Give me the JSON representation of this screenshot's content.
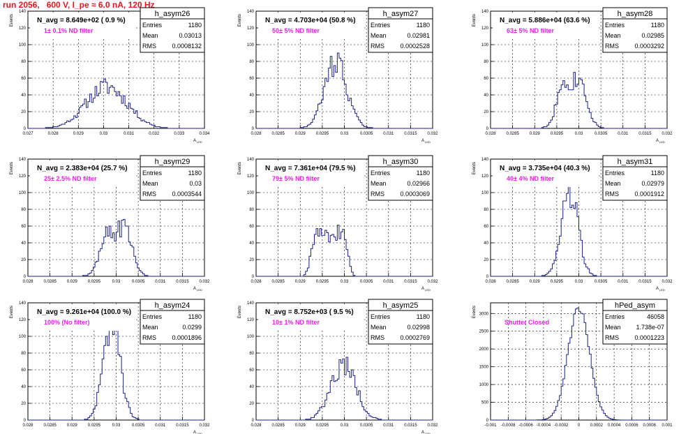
{
  "header": {
    "title": "run 2056,   600 V, I_pe ≈ 6.0 nA, 120 Hz"
  },
  "colors": {
    "line": "#1b1f8a",
    "header": "#e8141c",
    "filter_label": "#e81ee8",
    "grid": "#000000"
  },
  "chart_data": [
    {
      "type": "bar",
      "name": "h_asym26",
      "nbar": "N_avg = 8.649e+02 ( 0.9 %)",
      "label": "1± 0.1% ND filter",
      "stats": {
        "Entries": "1180",
        "Mean": "0.03013",
        "RMS": "0.0008132"
      },
      "ylabel": "Events",
      "xlabel": "A",
      "xlabel_sub": "LED",
      "xlim": [
        0.027,
        0.034
      ],
      "ylim": [
        0,
        140
      ],
      "xticks": [
        "0.027",
        "0.028",
        "0.029",
        "0.03",
        "0.031",
        "0.032",
        "0.033",
        "0.034"
      ],
      "yticks": [
        "0",
        "20",
        "40",
        "60",
        "80",
        "100",
        "120",
        "140"
      ],
      "dist": {
        "mode": "gauss",
        "mean": 0.03013,
        "sigma": 0.000813,
        "peak": 50,
        "seed": 11
      }
    },
    {
      "type": "bar",
      "name": "h_asym27",
      "nbar": "N_avg = 4.703e+04 (50.8 %)",
      "label": "50± 5% ND filter",
      "stats": {
        "Entries": "1180",
        "Mean": "0.02981",
        "RMS": "0.0002528"
      },
      "ylabel": "Events",
      "xlabel": "A",
      "xlabel_sub": "LED",
      "xlim": [
        0.028,
        0.032
      ],
      "ylim": [
        0,
        140
      ],
      "xticks": [
        "0.028",
        "0.0285",
        "0.029",
        "0.0295",
        "0.03",
        "0.0305",
        "0.031",
        "0.0315",
        "0.032"
      ],
      "yticks": [
        "0",
        "20",
        "40",
        "60",
        "80",
        "100",
        "120",
        "140"
      ],
      "dist": {
        "mode": "gauss",
        "mean": 0.02981,
        "sigma": 0.000253,
        "peak": 80,
        "seed": 22
      }
    },
    {
      "type": "bar",
      "name": "h_asym28",
      "nbar": "N_avg = 5.886e+04 (63.6 %)",
      "label": "63± 5% ND filter",
      "stats": {
        "Entries": "1180",
        "Mean": "0.02985",
        "RMS": "0.0003292"
      },
      "ylabel": "Events",
      "xlabel": "A",
      "xlabel_sub": "LED",
      "xlim": [
        0.028,
        0.032
      ],
      "ylim": [
        0,
        140
      ],
      "xticks": [
        "0.028",
        "0.0285",
        "0.029",
        "0.0295",
        "0.03",
        "0.0305",
        "0.031",
        "0.0315",
        "0.032"
      ],
      "yticks": [
        "0",
        "20",
        "40",
        "60",
        "80",
        "100",
        "120",
        "140"
      ],
      "dist": {
        "mode": "bimodal",
        "mean": 0.02985,
        "sep": 0.00034,
        "sigma": 0.00017,
        "peak": 56,
        "seed": 33
      }
    },
    {
      "type": "bar",
      "name": "h_asym29",
      "nbar": "N_avg = 2.383e+04 (25.7 %)",
      "label": "25± 2.5% ND filter",
      "stats": {
        "Entries": "1180",
        "Mean": "0.03",
        "RMS": "0.0003544"
      },
      "ylabel": "Events",
      "xlabel": "A",
      "xlabel_sub": "LED",
      "xlim": [
        0.028,
        0.032
      ],
      "ylim": [
        0,
        140
      ],
      "xticks": [
        "0.028",
        "0.0285",
        "0.029",
        "0.0295",
        "0.03",
        "0.0305",
        "0.031",
        "0.0315",
        "0.032"
      ],
      "yticks": [
        "0",
        "20",
        "40",
        "60",
        "80",
        "100",
        "120",
        "140"
      ],
      "dist": {
        "mode": "bimodal",
        "mean": 0.03,
        "sep": 0.00037,
        "sigma": 0.00018,
        "peak": 54,
        "seed": 44
      }
    },
    {
      "type": "bar",
      "name": "h_asym30",
      "nbar": "N_avg = 7.361e+04 (79.5 %)",
      "label": "79± 5% ND filter",
      "stats": {
        "Entries": "1180",
        "Mean": "0.02966",
        "RMS": "0.0003069"
      },
      "ylabel": "Events",
      "xlabel": "A",
      "xlabel_sub": "LED",
      "xlim": [
        0.028,
        0.032
      ],
      "ylim": [
        0,
        140
      ],
      "xticks": [
        "0.028",
        "0.0285",
        "0.029",
        "0.0295",
        "0.03",
        "0.0305",
        "0.031",
        "0.0315",
        "0.032"
      ],
      "yticks": [
        "0",
        "20",
        "40",
        "60",
        "80",
        "100",
        "120",
        "140"
      ],
      "dist": {
        "mode": "flat",
        "mean": 0.02966,
        "sigma": 0.00031,
        "peak": 52,
        "seed": 55
      }
    },
    {
      "type": "bar",
      "name": "h_asym31",
      "nbar": "N_avg = 3.735e+04 (40.3 %)",
      "label": "40± 4% ND filter",
      "stats": {
        "Entries": "1180",
        "Mean": "0.02979",
        "RMS": "0.0001912"
      },
      "ylabel": "Events",
      "xlabel": "A",
      "xlabel_sub": "LED",
      "xlim": [
        0.028,
        0.032
      ],
      "ylim": [
        0,
        140
      ],
      "xticks": [
        "0.028",
        "0.0285",
        "0.029",
        "0.0295",
        "0.03",
        "0.0305",
        "0.031",
        "0.0315",
        "0.032"
      ],
      "yticks": [
        "0",
        "20",
        "40",
        "60",
        "80",
        "100",
        "120",
        "140"
      ],
      "dist": {
        "mode": "gauss",
        "mean": 0.02979,
        "sigma": 0.00019,
        "peak": 100,
        "seed": 66
      }
    },
    {
      "type": "bar",
      "name": "h_asym24",
      "nbar": "N_avg = 9.261e+04 (100.0 %)",
      "label": "100% (No filter)",
      "stats": {
        "Entries": "1180",
        "Mean": "0.0299",
        "RMS": "0.0001896"
      },
      "ylabel": "Events",
      "xlabel": "A",
      "xlabel_sub": "LED",
      "xlim": [
        0.028,
        0.032
      ],
      "ylim": [
        0,
        140
      ],
      "xticks": [
        "0.028",
        "0.0285",
        "0.029",
        "0.0295",
        "0.03",
        "0.0305",
        "0.031",
        "0.0315",
        "0.032"
      ],
      "yticks": [
        "0",
        "20",
        "40",
        "60",
        "80",
        "100",
        "120",
        "140"
      ],
      "dist": {
        "mode": "gauss",
        "mean": 0.0299,
        "sigma": 0.00019,
        "peak": 118,
        "seed": 77
      }
    },
    {
      "type": "bar",
      "name": "h_asym25",
      "nbar": "N_avg = 8.752e+03 ( 9.5 %)",
      "label": "10± 1% ND filter",
      "stats": {
        "Entries": "1180",
        "Mean": "0.02998",
        "RMS": "0.0002769"
      },
      "ylabel": "Events",
      "xlabel": "A",
      "xlabel_sub": "LED",
      "xlim": [
        0.028,
        0.032
      ],
      "ylim": [
        0,
        140
      ],
      "xticks": [
        "0.028",
        "0.0285",
        "0.029",
        "0.0295",
        "0.03",
        "0.0305",
        "0.031",
        "0.0315",
        "0.032"
      ],
      "yticks": [
        "0",
        "20",
        "40",
        "60",
        "80",
        "100",
        "120",
        "140"
      ],
      "dist": {
        "mode": "gauss",
        "mean": 0.02998,
        "sigma": 0.00028,
        "peak": 68,
        "seed": 88
      }
    },
    {
      "type": "bar",
      "name": "hPed_asym",
      "nbar": "",
      "label": "Shutter Closed",
      "stats": {
        "Entries": "46058",
        "Mean": "1.738e-07",
        "RMS": "0.0001223"
      },
      "ylabel": "Events",
      "xlabel": "",
      "xlabel_sub": "",
      "xlim": [
        -0.001,
        0.001
      ],
      "ylim": [
        0,
        3300
      ],
      "xticks": [
        "-0.001",
        "-0.0008",
        "-0.0006",
        "-0.0004",
        "-0.0002",
        "0",
        "0.0002",
        "0.0004",
        "0.0006",
        "0.0008",
        "0.001"
      ],
      "yticks": [
        "0",
        "500",
        "1000",
        "1500",
        "2000",
        "2500",
        "3000"
      ],
      "dist": {
        "mode": "gauss",
        "mean": 0.0,
        "sigma": 0.000122,
        "peak": 3150,
        "seed": 99,
        "smooth": true
      }
    }
  ]
}
